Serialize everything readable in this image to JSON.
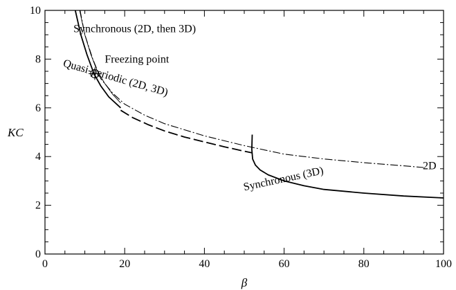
{
  "chart_data": {
    "type": "line",
    "xlabel": "β",
    "ylabel": "KC",
    "xlim": [
      0,
      100
    ],
    "ylim": [
      0,
      10
    ],
    "x_ticks": [
      "0",
      "20",
      "40",
      "60",
      "80",
      "100"
    ],
    "y_ticks": [
      "0",
      "2",
      "4",
      "6",
      "8",
      "10"
    ],
    "grid": false,
    "series": [
      {
        "style": "solid-thick",
        "x": [
          7.6,
          9,
          10.5,
          12.3,
          14,
          16,
          19
        ],
        "y": [
          10.0,
          9.0,
          8.2,
          7.4,
          6.9,
          6.45,
          6.0
        ]
      },
      {
        "style": "solid-thin",
        "x": [
          8.7,
          10,
          11.5,
          13,
          15,
          17,
          19
        ],
        "y": [
          10.0,
          9.0,
          8.2,
          7.55,
          7.0,
          6.55,
          6.2
        ]
      },
      {
        "style": "dashed",
        "x": [
          19,
          22,
          26,
          30,
          35,
          40,
          45,
          50,
          52
        ],
        "y": [
          5.9,
          5.6,
          5.3,
          5.05,
          4.8,
          4.6,
          4.4,
          4.22,
          4.15
        ]
      },
      {
        "style": "dash-dot",
        "x": [
          8.8,
          10,
          12,
          14,
          17,
          20,
          25,
          30,
          40,
          50,
          60,
          70,
          80,
          90,
          95
        ],
        "y": [
          10.0,
          9.0,
          8.0,
          7.2,
          6.6,
          6.15,
          5.7,
          5.35,
          4.85,
          4.45,
          4.1,
          3.9,
          3.75,
          3.62,
          3.55
        ]
      },
      {
        "style": "solid-thick",
        "x": [
          52,
          51.9,
          52.1,
          52.8,
          54,
          56,
          60,
          65,
          70,
          80,
          90,
          100
        ],
        "y": [
          4.9,
          4.3,
          3.9,
          3.65,
          3.45,
          3.25,
          3.0,
          2.8,
          2.65,
          2.5,
          2.38,
          2.3
        ]
      }
    ],
    "freezing_point": {
      "x": 12.5,
      "y": 7.4
    },
    "annotations": [
      {
        "text": "Synchronous (2D, then 3D)",
        "x": 22.5,
        "y": 9.1,
        "rotate": 0
      },
      {
        "text": "Freezing point",
        "x": 15,
        "y": 7.85,
        "rotate": 0
      },
      {
        "text": "Quasi-periodic (2D, 3D)",
        "x": 17.5,
        "y": 7.1,
        "rotate": 16
      },
      {
        "text": "2D",
        "x": 96.5,
        "y": 3.48,
        "rotate": 0
      },
      {
        "text": "Synchronous (3D)",
        "x": 60,
        "y": 2.95,
        "rotate": -12
      }
    ]
  }
}
